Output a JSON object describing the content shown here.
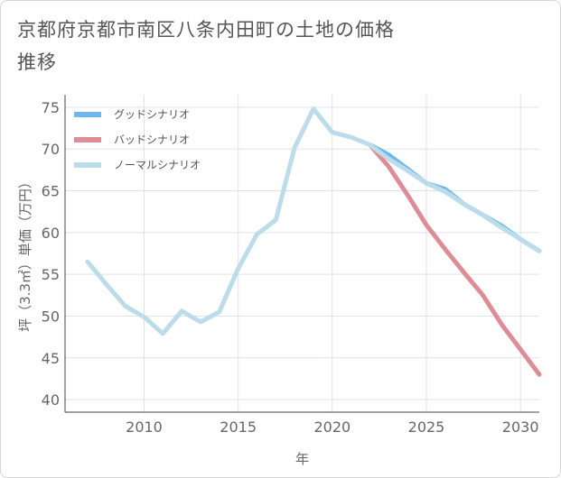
{
  "title": "京都府京都市南区八条内田町の土地の価格推移",
  "chart_data": {
    "type": "line",
    "title": "京都府京都市南区八条内田町の土地の価格推移",
    "xlabel": "年",
    "ylabel": "坪（3.3㎡）単価（万円）",
    "xlim": [
      2005.8,
      2031
    ],
    "ylim": [
      38.5,
      76.5
    ],
    "xticks": [
      2010,
      2015,
      2020,
      2025,
      2030
    ],
    "yticks": [
      40,
      45,
      50,
      55,
      60,
      65,
      70,
      75
    ],
    "grid": true,
    "legend_position": "top-left",
    "series": [
      {
        "name": "グッドシナリオ",
        "color": "#6cb8ec",
        "x": [
          2022,
          2023,
          2024,
          2025,
          2026,
          2027,
          2028,
          2029,
          2030,
          2031
        ],
        "y": [
          70.5,
          69.3,
          67.6,
          65.9,
          65.2,
          63.4,
          62.1,
          60.8,
          59.2,
          57.8
        ]
      },
      {
        "name": "バッドシナリオ",
        "color": "#de8c95",
        "x": [
          2022,
          2023,
          2024,
          2025,
          2026,
          2027,
          2028,
          2029,
          2030,
          2031
        ],
        "y": [
          70.5,
          67.9,
          64.5,
          60.9,
          58.0,
          55.2,
          52.5,
          49.0,
          46.0,
          43.0
        ]
      },
      {
        "name": "ノーマルシナリオ",
        "color": "#bcdcea",
        "x": [
          2007,
          2008,
          2009,
          2010,
          2011,
          2012,
          2013,
          2014,
          2015,
          2016,
          2017,
          2018,
          2019,
          2020,
          2021,
          2022,
          2023,
          2024,
          2025,
          2026,
          2027,
          2028,
          2029,
          2030,
          2031
        ],
        "y": [
          56.5,
          53.8,
          51.2,
          49.9,
          47.9,
          50.6,
          49.3,
          50.5,
          55.7,
          59.8,
          61.5,
          70.2,
          74.8,
          72.0,
          71.4,
          70.5,
          68.8,
          67.4,
          65.9,
          64.9,
          63.4,
          62.1,
          60.6,
          59.2,
          57.8
        ]
      }
    ]
  }
}
